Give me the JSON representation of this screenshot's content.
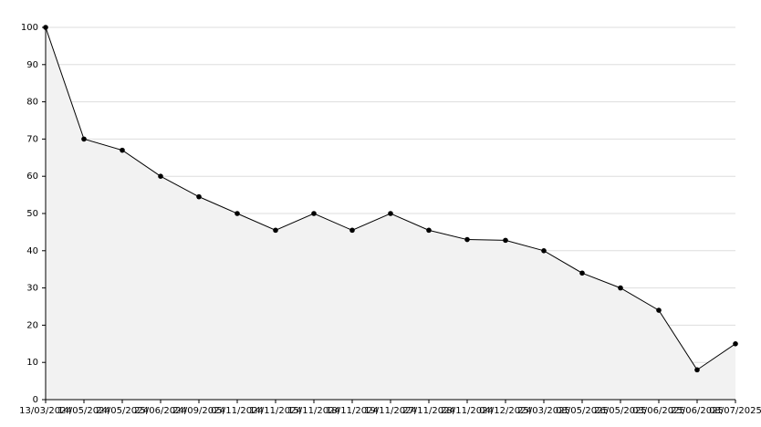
{
  "chart_data": {
    "type": "line",
    "area": true,
    "x": [
      "13/03/2024",
      "14/05/2024",
      "24/05/2024",
      "25/06/2024",
      "24/09/2024",
      "05/11/2024",
      "14/11/2024",
      "15/11/2024",
      "18/11/2024",
      "19/11/2024",
      "27/11/2024",
      "28/11/2024",
      "04/12/2024",
      "25/03/2025",
      "08/05/2025",
      "26/05/2025",
      "03/06/2025",
      "25/06/2025",
      "08/07/2025"
    ],
    "series": [
      {
        "color": "#000000",
        "area_color": "#f2f2f2",
        "values": [
          100,
          70,
          67,
          60,
          54.5,
          50,
          45.5,
          50,
          45.5,
          50,
          45.5,
          43,
          42.8,
          40,
          34,
          30,
          24,
          8,
          15
        ]
      }
    ],
    "ylim": [
      0,
      100
    ],
    "yticks": [
      0,
      10,
      20,
      30,
      40,
      50,
      60,
      70,
      80,
      90,
      100
    ],
    "grid": true
  }
}
